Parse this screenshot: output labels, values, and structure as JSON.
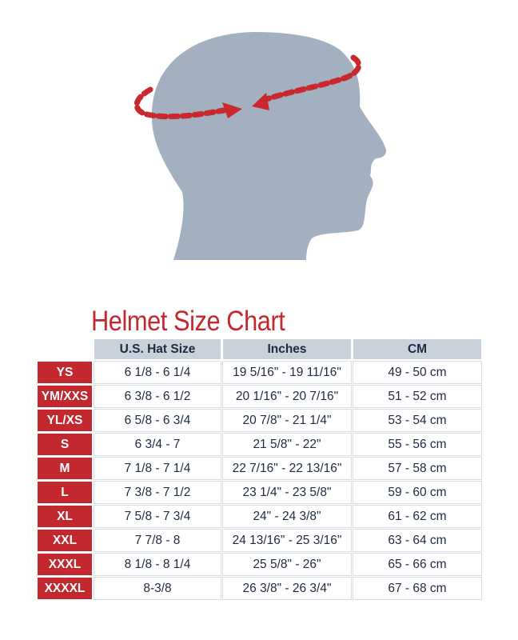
{
  "title": "Helmet Size Chart",
  "colors": {
    "accent": "#c3282e",
    "header": "#c9d1db",
    "silhouette": "#a3b0bf"
  },
  "columns": [
    "U.S. Hat Size",
    "Inches",
    "CM"
  ],
  "rows": [
    {
      "size": "YS",
      "hat": "6 1/8 - 6 1/4",
      "inches": "19 5/16\" - 19 11/16\"",
      "cm": "49 - 50 cm"
    },
    {
      "size": "YM/XXS",
      "hat": "6 3/8 - 6 1/2",
      "inches": "20 1/16\" - 20 7/16\"",
      "cm": "51 - 52 cm"
    },
    {
      "size": "YL/XS",
      "hat": "6 5/8 - 6 3/4",
      "inches": "20 7/8\" - 21 1/4\"",
      "cm": "53 - 54 cm"
    },
    {
      "size": "S",
      "hat": "6 3/4 - 7",
      "inches": "21 5/8\" - 22\"",
      "cm": "55 - 56 cm"
    },
    {
      "size": "M",
      "hat": "7 1/8 - 7 1/4",
      "inches": "22 7/16\" - 22 13/16\"",
      "cm": "57 - 58 cm"
    },
    {
      "size": "L",
      "hat": "7 3/8 - 7 1/2",
      "inches": "23 1/4\" - 23 5/8\"",
      "cm": "59 - 60 cm"
    },
    {
      "size": "XL",
      "hat": "7 5/8 - 7 3/4",
      "inches": "24\" - 24 3/8\"",
      "cm": "61 - 62 cm"
    },
    {
      "size": "XXL",
      "hat": "7 7/8 - 8",
      "inches": "24 13/16\" - 25 3/16\"",
      "cm": "63 - 64 cm"
    },
    {
      "size": "XXXL",
      "hat": "8 1/8 - 8 1/4",
      "inches": "25 5/8\" - 26\"",
      "cm": "65 - 66 cm"
    },
    {
      "size": "XXXXL",
      "hat": "8-3/8",
      "inches": "26 3/8\" - 26 3/4\"",
      "cm": "67 - 68 cm"
    }
  ]
}
